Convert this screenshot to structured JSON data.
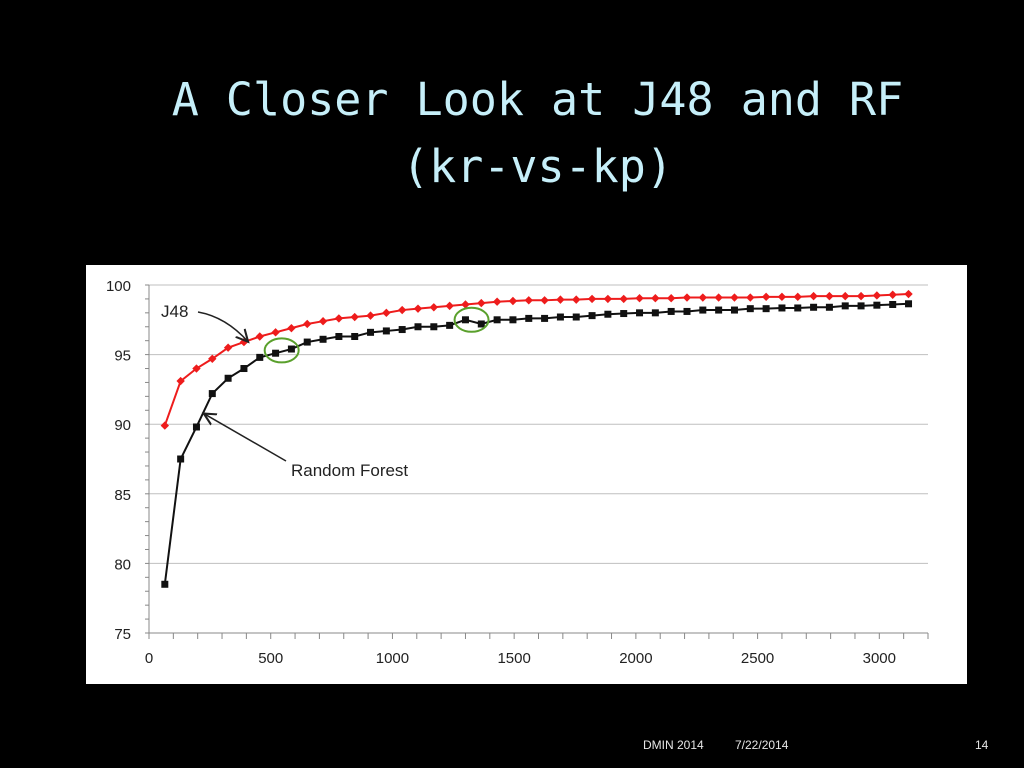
{
  "slide": {
    "title_line1": "A Closer Look at J48 and RF",
    "title_line2": "(kr-vs-kp)",
    "footer_conference": "DMIN 2014",
    "footer_date": "7/22/2014",
    "footer_page": "14"
  },
  "colors": {
    "background": "#000000",
    "title": "#c6eff9",
    "j48": "#ee1c1c",
    "random_forest": "#111111",
    "highlight_circle": "#5aa02c",
    "grid": "#bfbfbf"
  },
  "chart_data": {
    "type": "line",
    "title": "",
    "xlabel": "",
    "ylabel": "",
    "xlim": [
      0,
      3200
    ],
    "ylim": [
      75,
      100
    ],
    "x_ticks": [
      0,
      500,
      1000,
      1500,
      2000,
      2500,
      3000
    ],
    "y_ticks": [
      75,
      80,
      85,
      90,
      95,
      100
    ],
    "grid": "horizontal",
    "legend": "none",
    "series": [
      {
        "name": "J48",
        "marker": "diamond",
        "color": "#ee1c1c",
        "x": [
          65,
          130,
          195,
          260,
          325,
          390,
          455,
          520,
          585,
          650,
          715,
          780,
          845,
          910,
          975,
          1040,
          1105,
          1170,
          1235,
          1300,
          1365,
          1430,
          1495,
          1560,
          1625,
          1690,
          1755,
          1820,
          1885,
          1950,
          2015,
          2080,
          2145,
          2210,
          2275,
          2340,
          2405,
          2470,
          2535,
          2600,
          2665,
          2730,
          2795,
          2860,
          2925,
          2990,
          3055,
          3120
        ],
        "y": [
          89.9,
          93.1,
          94.0,
          94.7,
          95.5,
          95.9,
          96.3,
          96.6,
          96.9,
          97.2,
          97.4,
          97.6,
          97.7,
          97.8,
          98.0,
          98.2,
          98.3,
          98.4,
          98.5,
          98.6,
          98.7,
          98.8,
          98.85,
          98.9,
          98.9,
          98.95,
          98.95,
          99.0,
          99.0,
          99.0,
          99.05,
          99.05,
          99.05,
          99.1,
          99.1,
          99.1,
          99.1,
          99.1,
          99.15,
          99.15,
          99.15,
          99.2,
          99.2,
          99.2,
          99.2,
          99.25,
          99.3,
          99.35
        ]
      },
      {
        "name": "Random Forest",
        "marker": "square",
        "color": "#111111",
        "x": [
          65,
          130,
          195,
          260,
          325,
          390,
          455,
          520,
          585,
          650,
          715,
          780,
          845,
          910,
          975,
          1040,
          1105,
          1170,
          1235,
          1300,
          1365,
          1430,
          1495,
          1560,
          1625,
          1690,
          1755,
          1820,
          1885,
          1950,
          2015,
          2080,
          2145,
          2210,
          2275,
          2340,
          2405,
          2470,
          2535,
          2600,
          2665,
          2730,
          2795,
          2860,
          2925,
          2990,
          3055,
          3120
        ],
        "y": [
          78.5,
          87.5,
          89.8,
          92.2,
          93.3,
          94.0,
          94.8,
          95.1,
          95.4,
          95.9,
          96.1,
          96.3,
          96.3,
          96.6,
          96.7,
          96.8,
          97.0,
          97.0,
          97.1,
          97.5,
          97.2,
          97.5,
          97.5,
          97.6,
          97.6,
          97.7,
          97.7,
          97.8,
          97.9,
          97.95,
          98.0,
          98.0,
          98.1,
          98.1,
          98.2,
          98.2,
          98.2,
          98.3,
          98.3,
          98.35,
          98.35,
          98.4,
          98.4,
          98.5,
          98.5,
          98.55,
          98.6,
          98.65
        ]
      }
    ],
    "annotations": [
      {
        "text": "J48",
        "series": "J48",
        "arrow_to_x": 440
      },
      {
        "text": "Random Forest",
        "series": "Random Forest",
        "arrow_to_x": 225
      }
    ],
    "highlights": [
      {
        "center_x": 545,
        "center_y": 95.3
      },
      {
        "center_x": 1325,
        "center_y": 97.5
      }
    ]
  }
}
